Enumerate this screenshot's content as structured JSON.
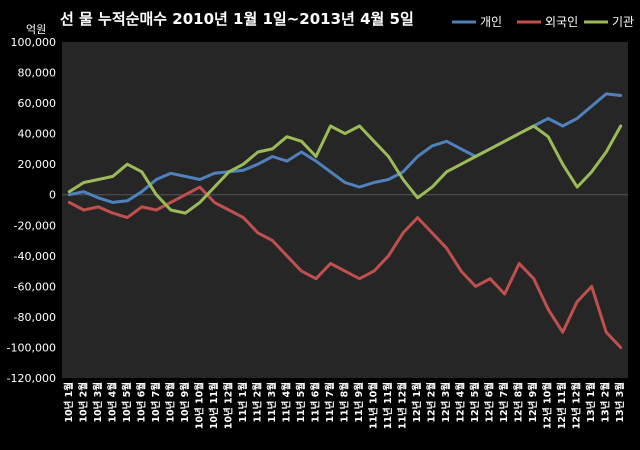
{
  "colors": {
    "background": "#000000",
    "plot_background": "#262626",
    "text": "#ffffff",
    "individual": "#4f81bd",
    "foreign": "#c0504d",
    "institution": "#9bbb59"
  },
  "chart_data": {
    "type": "line",
    "title": "선 물 누적순매수 2010년 1월 1일~2013년 4월 5일",
    "ylabel": "억원",
    "xlabel": "",
    "ylim": [
      -120000,
      100000
    ],
    "yticks": [
      "100,000",
      "80,000",
      "60,000",
      "40,000",
      "20,000",
      "0",
      "-20,000",
      "-40,000",
      "-60,000",
      "-80,000",
      "-100,000",
      "-120,000"
    ],
    "grid": false,
    "legend": "top-right",
    "categories": [
      "10년 1월",
      "10년 2월",
      "10년 3월",
      "10년 4월",
      "10년 5월",
      "10년 6월",
      "10년 7월",
      "10년 8월",
      "10년 9월",
      "10년 10월",
      "10년 11월",
      "10년 12월",
      "11년 1월",
      "11년 2월",
      "11년 3월",
      "11년 4월",
      "11년 5월",
      "11년 6월",
      "11년 7월",
      "11년 8월",
      "11년 9월",
      "11년 10월",
      "11년 11월",
      "11년 12월",
      "12년 1월",
      "12년 2월",
      "12년 3월",
      "12년 4월",
      "12년 5월",
      "12년 6월",
      "12년 7월",
      "12년 8월",
      "12년 9월",
      "12년 10월",
      "12년 11월",
      "12년 12월",
      "13년 1월",
      "13년 2월",
      "13년 3월"
    ],
    "series": [
      {
        "name": "개인",
        "color": "#4f81bd",
        "values": [
          0,
          2000,
          -2000,
          -5000,
          -4000,
          2000,
          10000,
          14000,
          12000,
          10000,
          14000,
          15000,
          16000,
          20000,
          25000,
          22000,
          28000,
          22000,
          15000,
          8000,
          5000,
          8000,
          10000,
          15000,
          25000,
          32000,
          35000,
          30000,
          25000,
          30000,
          35000,
          40000,
          45000,
          50000,
          45000,
          50000,
          58000,
          66000,
          65000
        ]
      },
      {
        "name": "외국인",
        "color": "#c0504d",
        "values": [
          -5000,
          -10000,
          -8000,
          -12000,
          -15000,
          -8000,
          -10000,
          -5000,
          0,
          5000,
          -5000,
          -10000,
          -15000,
          -25000,
          -30000,
          -40000,
          -50000,
          -55000,
          -45000,
          -50000,
          -55000,
          -50000,
          -40000,
          -25000,
          -15000,
          -25000,
          -35000,
          -50000,
          -60000,
          -55000,
          -65000,
          -45000,
          -55000,
          -75000,
          -90000,
          -70000,
          -60000,
          -90000,
          -100000
        ]
      },
      {
        "name": "기관",
        "color": "#9bbb59",
        "values": [
          2000,
          8000,
          10000,
          12000,
          20000,
          15000,
          0,
          -10000,
          -12000,
          -5000,
          5000,
          15000,
          20000,
          28000,
          30000,
          38000,
          35000,
          25000,
          45000,
          40000,
          45000,
          35000,
          25000,
          10000,
          -2000,
          5000,
          15000,
          20000,
          25000,
          30000,
          35000,
          40000,
          45000,
          38000,
          20000,
          5000,
          15000,
          28000,
          45000
        ]
      }
    ]
  }
}
